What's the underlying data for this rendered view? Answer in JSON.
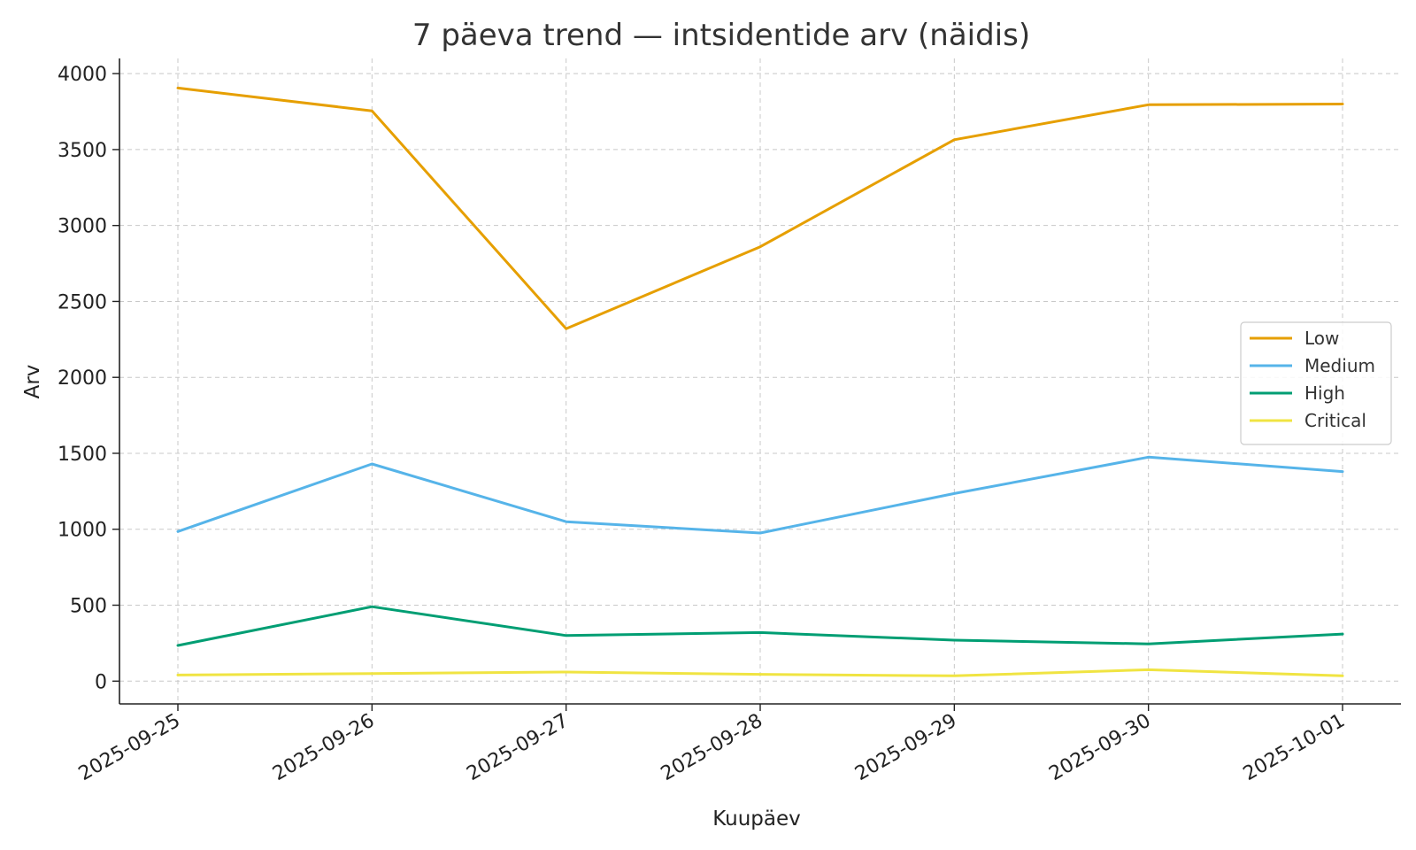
{
  "chart_data": {
    "type": "line",
    "title": "7 päeva trend — intsidentide arv (näidis)",
    "xlabel": "Kuupäev",
    "ylabel": "Arv",
    "x": [
      "2025-09-25",
      "2025-09-26",
      "2025-09-27",
      "2025-09-28",
      "2025-09-29",
      "2025-09-30",
      "2025-10-01"
    ],
    "ylim": [
      -150,
      4100
    ],
    "yticks": [
      0,
      500,
      1000,
      1500,
      2000,
      2500,
      3000,
      3500,
      4000
    ],
    "grid": true,
    "legend_position": "center-right",
    "series": [
      {
        "name": "Low",
        "color": "#E69F00",
        "values": [
          3905,
          3755,
          2320,
          2860,
          3565,
          3795,
          3800
        ]
      },
      {
        "name": "Medium",
        "color": "#56B4E9",
        "values": [
          985,
          1430,
          1050,
          975,
          1235,
          1475,
          1380
        ]
      },
      {
        "name": "High",
        "color": "#009E73",
        "values": [
          235,
          490,
          300,
          320,
          270,
          245,
          310
        ]
      },
      {
        "name": "Critical",
        "color": "#F0E442",
        "values": [
          40,
          50,
          60,
          45,
          35,
          75,
          35
        ]
      }
    ]
  }
}
